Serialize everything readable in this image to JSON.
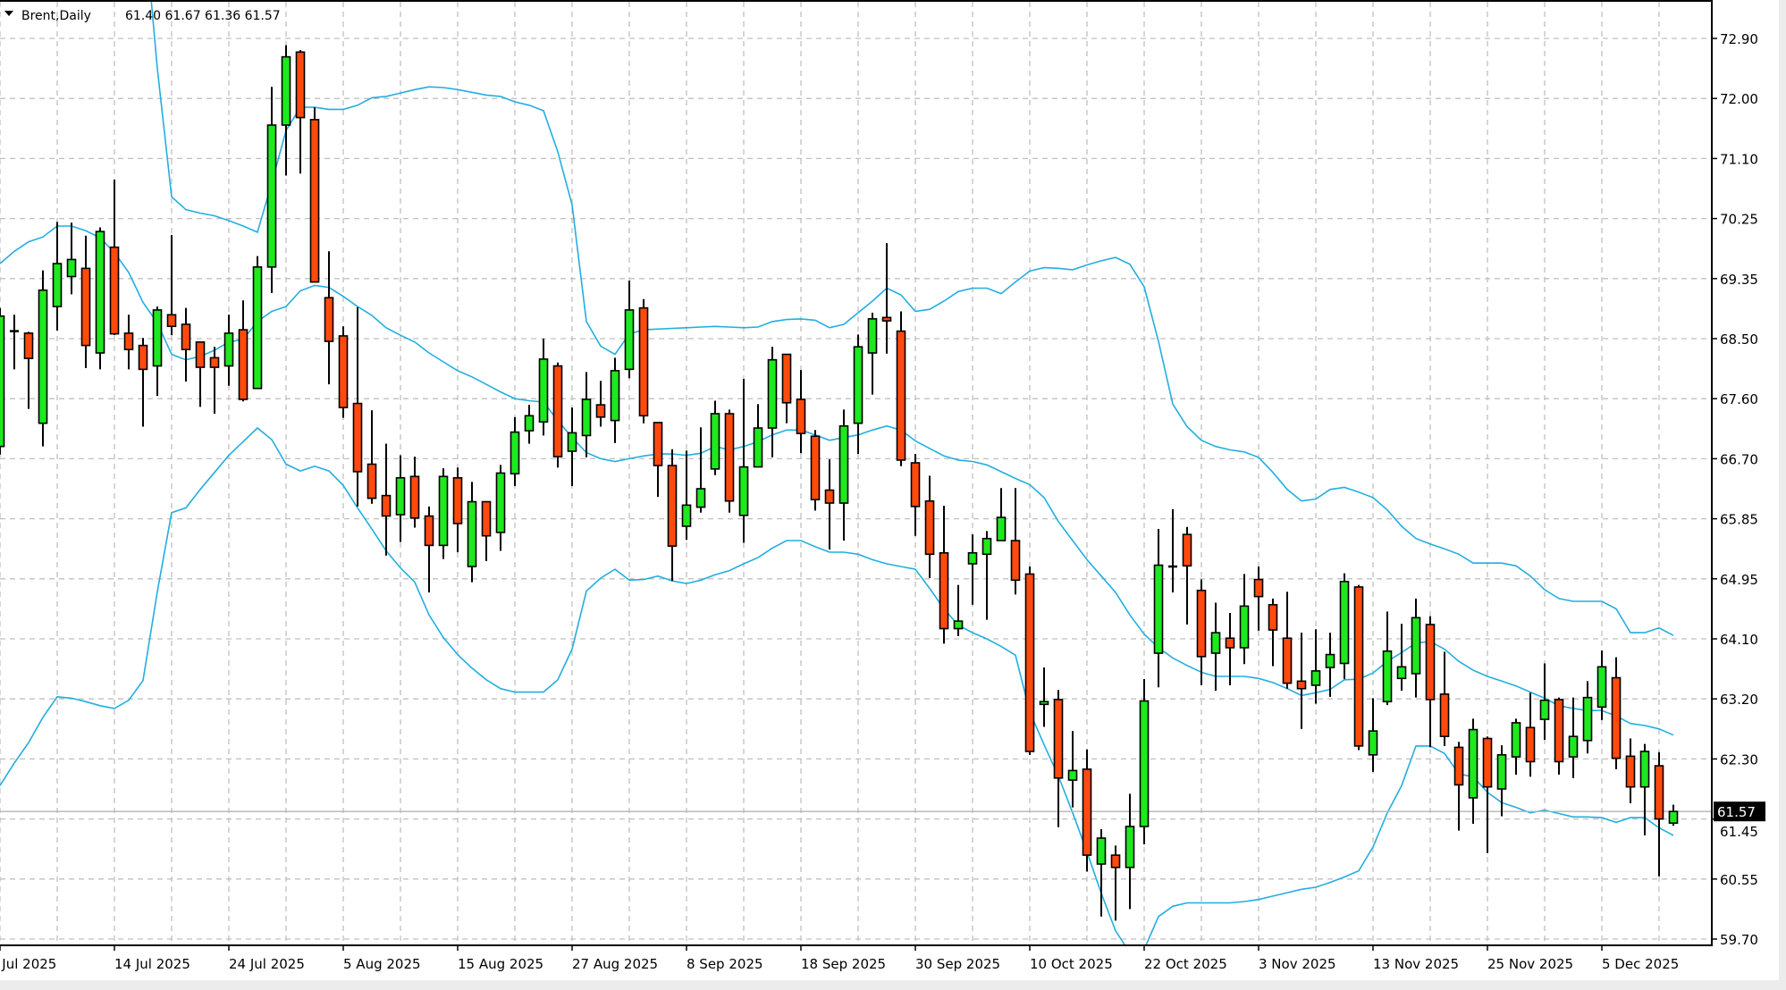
{
  "header": {
    "menu_icon": "triangle-down-icon",
    "symbol_timeframe": "Brent,Daily",
    "ohlc": "61.40 61.67 61.36 61.57"
  },
  "chart_data": {
    "type": "candlestick",
    "symbol": "Brent",
    "timeframe": "Daily",
    "indicator": "Bollinger Bands",
    "grid": true,
    "colors": {
      "bull": "#1ee81e",
      "bear": "#ff4a0e",
      "bands": "#22aee0",
      "grid": "#c0c0c0",
      "outline": "#000000",
      "current_price_line": "#b4b4b4"
    },
    "ylim": [
      59.7,
      72.9
    ],
    "y_tick_labels": [
      "72.90",
      "72.00",
      "71.10",
      "70.25",
      "69.35",
      "68.50",
      "67.60",
      "66.70",
      "65.85",
      "64.95",
      "64.10",
      "63.20",
      "62.30",
      "61.45",
      "60.55",
      "59.70"
    ],
    "x_tick_labels": [
      "2 Jul 2025",
      "14 Jul 2025",
      "24 Jul 2025",
      "5 Aug 2025",
      "15 Aug 2025",
      "27 Aug 2025",
      "8 Sep 2025",
      "18 Sep 2025",
      "30 Sep 2025",
      "10 Oct 2025",
      "22 Oct 2025",
      "3 Nov 2025",
      "13 Nov 2025",
      "25 Nov 2025",
      "5 Dec 2025"
    ],
    "current_price": "61.57",
    "ohlc_fields": [
      "open",
      "high",
      "low",
      "close"
    ],
    "candles": [
      [
        66.92,
        68.95,
        66.8,
        68.83
      ],
      [
        68.61,
        68.85,
        68.05,
        68.61
      ],
      [
        68.58,
        68.6,
        67.47,
        68.21
      ],
      [
        67.26,
        69.5,
        66.92,
        69.21
      ],
      [
        68.97,
        70.21,
        68.62,
        69.6
      ],
      [
        69.41,
        70.2,
        69.15,
        69.66
      ],
      [
        69.53,
        70.01,
        68.07,
        68.4
      ],
      [
        68.29,
        70.13,
        68.05,
        70.07
      ],
      [
        69.84,
        70.83,
        68.55,
        68.57
      ],
      [
        68.58,
        68.85,
        68.05,
        68.34
      ],
      [
        68.4,
        68.51,
        67.21,
        68.05
      ],
      [
        68.1,
        68.97,
        67.66,
        68.92
      ],
      [
        68.85,
        70.02,
        68.55,
        68.68
      ],
      [
        68.71,
        68.95,
        67.87,
        68.34
      ],
      [
        68.45,
        68.45,
        67.5,
        68.08
      ],
      [
        68.22,
        68.38,
        67.4,
        68.08
      ],
      [
        68.1,
        68.85,
        67.81,
        68.58
      ],
      [
        68.63,
        69.06,
        67.58,
        67.61
      ],
      [
        67.77,
        69.71,
        67.77,
        69.55
      ],
      [
        69.55,
        72.19,
        69.17,
        71.63
      ],
      [
        71.63,
        72.8,
        70.89,
        72.63
      ],
      [
        72.7,
        72.73,
        70.92,
        71.74
      ],
      [
        71.71,
        71.89,
        69.33,
        69.33
      ],
      [
        69.1,
        69.78,
        67.83,
        68.46
      ],
      [
        68.54,
        68.68,
        67.34,
        67.49
      ],
      [
        67.55,
        68.96,
        66.04,
        66.55
      ],
      [
        66.66,
        67.45,
        66.08,
        66.16
      ],
      [
        66.2,
        66.96,
        65.32,
        65.9
      ],
      [
        65.92,
        66.79,
        65.52,
        66.46
      ],
      [
        66.48,
        66.77,
        65.73,
        65.87
      ],
      [
        65.9,
        66.04,
        64.78,
        65.47
      ],
      [
        65.47,
        66.6,
        65.27,
        66.48
      ],
      [
        66.46,
        66.61,
        65.37,
        65.79
      ],
      [
        65.16,
        66.4,
        64.93,
        66.11
      ],
      [
        66.11,
        66.11,
        65.24,
        65.61
      ],
      [
        65.66,
        66.65,
        65.39,
        66.53
      ],
      [
        66.52,
        67.35,
        66.34,
        67.13
      ],
      [
        67.15,
        67.53,
        66.96,
        67.37
      ],
      [
        67.28,
        68.5,
        67.08,
        68.2
      ],
      [
        68.1,
        68.15,
        66.61,
        66.77
      ],
      [
        66.85,
        67.49,
        66.34,
        67.12
      ],
      [
        67.08,
        68.01,
        66.76,
        67.61
      ],
      [
        67.53,
        67.88,
        67.21,
        67.35
      ],
      [
        67.3,
        68.22,
        66.97,
        68.03
      ],
      [
        68.05,
        69.35,
        67.92,
        68.92
      ],
      [
        68.95,
        69.08,
        67.26,
        67.37
      ],
      [
        67.27,
        67.27,
        66.18,
        66.64
      ],
      [
        66.64,
        66.88,
        64.95,
        65.46
      ],
      [
        65.75,
        66.86,
        65.55,
        66.06
      ],
      [
        66.03,
        67.2,
        65.95,
        66.3
      ],
      [
        66.59,
        67.59,
        66.5,
        67.4
      ],
      [
        67.4,
        67.46,
        65.95,
        66.12
      ],
      [
        65.91,
        67.91,
        65.51,
        66.62
      ],
      [
        66.62,
        67.54,
        66.62,
        67.19
      ],
      [
        67.19,
        68.38,
        66.76,
        68.19
      ],
      [
        68.27,
        68.27,
        67.26,
        67.56
      ],
      [
        67.61,
        68.04,
        66.82,
        67.11
      ],
      [
        67.07,
        67.16,
        65.98,
        66.14
      ],
      [
        66.28,
        66.73,
        65.41,
        66.09
      ],
      [
        66.09,
        67.46,
        65.54,
        67.22
      ],
      [
        67.26,
        68.56,
        66.81,
        68.38
      ],
      [
        68.29,
        68.88,
        67.68,
        68.79
      ],
      [
        68.81,
        69.9,
        68.28,
        68.76
      ],
      [
        68.61,
        68.9,
        66.63,
        66.72
      ],
      [
        66.68,
        66.81,
        65.61,
        66.04
      ],
      [
        66.12,
        66.49,
        64.99,
        65.34
      ],
      [
        65.36,
        66.05,
        64.03,
        64.25
      ],
      [
        64.25,
        64.89,
        64.14,
        64.36
      ],
      [
        65.2,
        65.63,
        64.6,
        65.36
      ],
      [
        65.34,
        65.68,
        64.38,
        65.57
      ],
      [
        65.54,
        66.31,
        65.54,
        65.88
      ],
      [
        65.54,
        66.31,
        64.75,
        64.96
      ],
      [
        65.05,
        65.16,
        62.4,
        62.45
      ],
      [
        63.14,
        63.68,
        62.81,
        63.18
      ],
      [
        63.21,
        63.35,
        61.34,
        62.06
      ],
      [
        62.03,
        62.75,
        61.63,
        62.17
      ],
      [
        62.19,
        62.48,
        60.69,
        60.93
      ],
      [
        60.8,
        61.31,
        60.03,
        61.18
      ],
      [
        60.93,
        61.07,
        59.97,
        60.75
      ],
      [
        60.75,
        61.83,
        60.14,
        61.35
      ],
      [
        61.35,
        63.51,
        61.09,
        63.19
      ],
      [
        63.89,
        65.71,
        63.39,
        65.18
      ],
      [
        65.16,
        66.0,
        64.78,
        65.15
      ],
      [
        65.63,
        65.74,
        64.31,
        65.17
      ],
      [
        64.81,
        64.97,
        63.42,
        63.84
      ],
      [
        63.89,
        64.63,
        63.34,
        64.19
      ],
      [
        64.11,
        64.48,
        63.42,
        63.97
      ],
      [
        63.97,
        65.05,
        63.73,
        64.58
      ],
      [
        64.97,
        65.16,
        64.22,
        64.72
      ],
      [
        64.6,
        64.69,
        63.7,
        64.23
      ],
      [
        64.11,
        64.79,
        63.37,
        63.45
      ],
      [
        63.48,
        64.19,
        62.78,
        63.37
      ],
      [
        63.42,
        64.24,
        63.15,
        63.63
      ],
      [
        63.68,
        64.19,
        63.25,
        63.87
      ],
      [
        63.74,
        65.06,
        63.51,
        64.94
      ],
      [
        64.86,
        64.89,
        62.47,
        62.53
      ],
      [
        62.4,
        63.23,
        62.15,
        62.75
      ],
      [
        63.18,
        64.5,
        63.13,
        63.92
      ],
      [
        63.52,
        64.32,
        63.34,
        63.69
      ],
      [
        63.59,
        64.69,
        63.24,
        64.41
      ],
      [
        64.31,
        64.43,
        62.51,
        63.21
      ],
      [
        63.29,
        63.91,
        62.53,
        62.67
      ],
      [
        62.51,
        62.59,
        61.29,
        61.96
      ],
      [
        61.77,
        62.93,
        61.39,
        62.77
      ],
      [
        62.64,
        62.67,
        60.96,
        61.93
      ],
      [
        61.9,
        62.54,
        61.5,
        62.4
      ],
      [
        62.37,
        62.93,
        62.11,
        62.87
      ],
      [
        62.8,
        63.31,
        62.08,
        62.3
      ],
      [
        62.92,
        63.74,
        62.62,
        63.2
      ],
      [
        63.21,
        63.24,
        62.11,
        62.3
      ],
      [
        62.37,
        63.24,
        62.06,
        62.67
      ],
      [
        62.61,
        63.48,
        62.42,
        63.24
      ],
      [
        63.1,
        63.93,
        62.91,
        63.69
      ],
      [
        63.53,
        63.83,
        62.19,
        62.35
      ],
      [
        62.38,
        62.64,
        61.69,
        61.93
      ],
      [
        61.93,
        62.56,
        61.22,
        62.45
      ],
      [
        62.24,
        62.44,
        60.62,
        61.46
      ],
      [
        61.4,
        61.67,
        61.36,
        61.57
      ]
    ],
    "bands": {
      "upper": [
        null,
        null,
        null,
        null,
        null,
        null,
        null,
        null,
        null,
        null,
        74.8,
        72.46,
        70.58,
        70.39,
        70.34,
        70.3,
        70.23,
        70.15,
        70.06,
        70.78,
        71.55,
        71.89,
        71.89,
        71.86,
        71.86,
        71.92,
        72.03,
        72.05,
        72.1,
        72.15,
        72.19,
        72.18,
        72.15,
        72.11,
        72.07,
        72.05,
        71.97,
        71.92,
        71.84,
        71.24,
        70.46,
        68.75,
        68.39,
        68.27,
        68.57,
        68.63,
        68.64,
        68.65,
        68.66,
        68.67,
        68.68,
        68.67,
        68.66,
        68.67,
        68.75,
        68.78,
        68.79,
        68.77,
        68.66,
        68.71,
        68.88,
        69.05,
        69.24,
        69.14,
        68.9,
        68.93,
        69.05,
        69.19,
        69.24,
        69.24,
        69.16,
        69.33,
        69.49,
        69.54,
        69.53,
        69.51,
        69.58,
        69.64,
        69.69,
        69.59,
        69.26,
        68.46,
        67.54,
        67.21,
        67.01,
        66.92,
        66.87,
        66.84,
        66.76,
        66.54,
        66.29,
        66.12,
        66.15,
        66.29,
        66.32,
        66.25,
        66.17,
        65.99,
        65.75,
        65.57,
        65.49,
        65.42,
        65.34,
        65.21,
        65.21,
        65.21,
        65.17,
        65.02,
        64.82,
        64.69,
        64.65,
        64.65,
        64.65,
        64.54,
        64.19,
        64.19,
        64.26,
        64.15
      ],
      "middle": [
        69.6,
        69.78,
        69.92,
        69.99,
        70.15,
        70.15,
        70.08,
        69.98,
        69.76,
        69.47,
        69.03,
        68.73,
        68.27,
        68.19,
        68.24,
        68.33,
        68.45,
        68.49,
        68.75,
        68.9,
        68.97,
        69.2,
        69.28,
        69.25,
        69.12,
        68.97,
        68.84,
        68.66,
        68.55,
        68.45,
        68.29,
        68.16,
        68.03,
        67.94,
        67.83,
        67.72,
        67.62,
        67.59,
        67.57,
        67.3,
        67.05,
        66.83,
        66.74,
        66.7,
        66.74,
        66.78,
        66.81,
        66.81,
        66.79,
        66.82,
        66.92,
        66.87,
        66.92,
        66.99,
        67.09,
        67.16,
        67.16,
        67.09,
        67.01,
        67.05,
        67.09,
        67.16,
        67.22,
        67.16,
        67.0,
        66.89,
        66.78,
        66.72,
        66.7,
        66.65,
        66.55,
        66.45,
        66.36,
        66.17,
        65.82,
        65.54,
        65.26,
        65.02,
        64.78,
        64.45,
        64.17,
        63.97,
        63.82,
        63.71,
        63.61,
        63.55,
        63.55,
        63.55,
        63.52,
        63.46,
        63.37,
        63.27,
        63.31,
        63.36,
        63.5,
        63.51,
        63.6,
        63.77,
        63.9,
        64.04,
        64.06,
        63.95,
        63.77,
        63.64,
        63.55,
        63.48,
        63.41,
        63.32,
        63.23,
        63.12,
        63.08,
        63.05,
        63.05,
        62.97,
        62.86,
        62.83,
        62.78,
        62.69
      ],
      "lower": [
        61.95,
        62.28,
        62.58,
        62.95,
        63.25,
        63.23,
        63.18,
        63.12,
        63.08,
        63.2,
        63.49,
        64.79,
        65.95,
        66.02,
        66.29,
        66.54,
        66.79,
        66.99,
        67.19,
        67.02,
        66.66,
        66.56,
        66.63,
        66.56,
        66.35,
        66.02,
        65.71,
        65.39,
        65.14,
        64.93,
        64.45,
        64.12,
        63.87,
        63.67,
        63.5,
        63.37,
        63.32,
        63.32,
        63.32,
        63.5,
        63.95,
        64.8,
        64.99,
        65.12,
        64.96,
        64.97,
        65.02,
        64.95,
        64.91,
        64.96,
        65.04,
        65.1,
        65.2,
        65.29,
        65.43,
        65.54,
        65.54,
        65.45,
        65.37,
        65.37,
        65.34,
        65.26,
        65.2,
        65.16,
        65.12,
        64.84,
        64.54,
        64.3,
        64.19,
        64.1,
        63.99,
        63.86,
        63.03,
        62.55,
        62.09,
        61.55,
        60.98,
        60.37,
        59.82,
        59.5,
        59.55,
        60.03,
        60.18,
        60.23,
        60.23,
        60.23,
        60.23,
        60.25,
        60.28,
        60.33,
        60.38,
        60.43,
        60.46,
        60.53,
        60.61,
        60.7,
        61.05,
        61.55,
        61.95,
        62.53,
        62.53,
        62.42,
        62.12,
        62.08,
        61.85,
        61.7,
        61.63,
        61.55,
        61.59,
        61.54,
        61.49,
        61.49,
        61.48,
        61.41,
        61.48,
        61.48,
        61.33,
        61.22
      ]
    }
  }
}
